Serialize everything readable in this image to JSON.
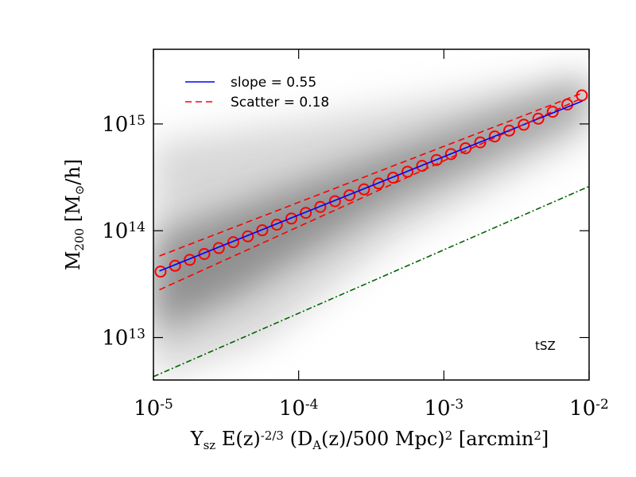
{
  "chart_data": {
    "type": "line",
    "xscale": "log",
    "yscale": "log",
    "x_label": [
      {
        "text": "Y"
      },
      {
        "text": "sz",
        "style": "sub"
      },
      {
        "text": " E(z)"
      },
      {
        "text": "-2/3",
        "style": "sup"
      },
      {
        "text": " (D"
      },
      {
        "text": "A",
        "style": "sub"
      },
      {
        "text": "(z)/500 Mpc)"
      },
      {
        "text": "2",
        "style": "sup"
      },
      {
        "text": " [arcmin"
      },
      {
        "text": "2",
        "style": "sup"
      },
      {
        "text": "]"
      }
    ],
    "y_label": [
      {
        "text": "M"
      },
      {
        "text": "200",
        "style": "sub"
      },
      {
        "text": " [M"
      },
      {
        "text": "⊙",
        "style": "sub"
      },
      {
        "text": "/h]"
      }
    ],
    "xlim": [
      1e-05,
      0.01
    ],
    "ylim": [
      4000000000000.0,
      5000000000000000.0
    ],
    "xticks": [
      {
        "value": 1e-05,
        "label": "10",
        "exponent": "-5"
      },
      {
        "value": 0.0001,
        "label": "10",
        "exponent": "-4"
      },
      {
        "value": 0.001,
        "label": "10",
        "exponent": "-3"
      },
      {
        "value": 0.01,
        "label": "10",
        "exponent": "-2"
      }
    ],
    "yticks": [
      {
        "value": 10000000000000.0,
        "label": "10",
        "exponent": "13"
      },
      {
        "value": 100000000000000.0,
        "label": "10",
        "exponent": "14"
      },
      {
        "value": 1000000000000000.0,
        "label": "10",
        "exponent": "15"
      }
    ],
    "legend": "upper left",
    "annotation": "tSZ",
    "series": [
      {
        "name": "slope = 0.55",
        "color": "#0000ff",
        "style": "solid",
        "x": [
          1.1e-05,
          0.009
        ],
        "values": [
          42000000000000.0,
          1640000000000000.0
        ]
      },
      {
        "name": "Scatter = 0.18",
        "color": "#ff0000",
        "style": "dashed",
        "x": [
          1.1e-05,
          0.009
        ],
        "values": [
          58000000000000.0,
          1950000000000000.0
        ]
      },
      {
        "color": "#ff0000",
        "style": "dashed",
        "x": [
          1.1e-05,
          0.009
        ],
        "values": [
          28000000000000.0,
          1750000000000000.0
        ]
      },
      {
        "color": "#ff0000",
        "style": "markers",
        "x": [
          1.12e-05,
          1.41e-05,
          1.78e-05,
          2.24e-05,
          2.82e-05,
          3.55e-05,
          4.47e-05,
          5.62e-05,
          7.08e-05,
          8.91e-05,
          0.000112,
          0.000141,
          0.000178,
          0.000224,
          0.000282,
          0.000355,
          0.000447,
          0.000562,
          0.000708,
          0.000891,
          0.00112,
          0.00141,
          0.00178,
          0.00224,
          0.00282,
          0.00355,
          0.00447,
          0.00562,
          0.00708,
          0.00891
        ],
        "values": [
          41400000000000.0,
          47000000000000.0,
          53400000000000.0,
          60600000000000.0,
          68800000000000.0,
          78100000000000.0,
          88600000000000.0,
          101000000000000.0,
          114000000000000.0,
          130000000000000.0,
          147000000000000.0,
          167000000000000.0,
          189000000000000.0,
          215000000000000.0,
          244000000000000.0,
          277000000000000.0,
          314000000000000.0,
          357000000000000.0,
          405000000000000.0,
          460000000000000.0,
          522000000000000.0,
          592000000000000.0,
          672000000000000.0,
          763000000000000.0,
          866000000000000.0,
          983000000000000.0,
          1120000000000000.0,
          1300000000000000.0,
          1520000000000000.0,
          1850000000000000.0
        ]
      },
      {
        "color": "#006400",
        "style": "dashdot",
        "x": [
          1e-05,
          0.01
        ],
        "values": [
          4300000000000.0,
          260000000000000.0
        ]
      }
    ]
  }
}
